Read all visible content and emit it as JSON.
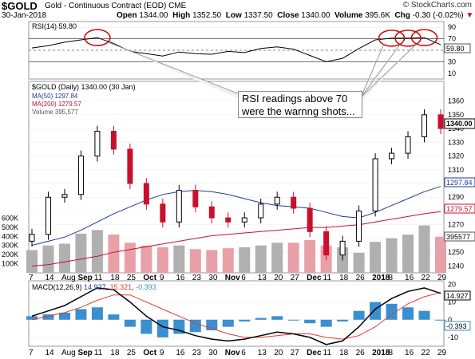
{
  "header": {
    "symbol": "$GOLD",
    "description": "Gold - Continuous Contract (EOD)",
    "exchange": "CME",
    "brand": "© StockCharts.com",
    "date": "30-Jan-2018",
    "open_label": "Open",
    "open": "1344.00",
    "high_label": "High",
    "high": "1352.50",
    "low_label": "Low",
    "low": "1337.50",
    "close_label": "Close",
    "close": "1340.00",
    "volume_label": "Volume",
    "volume": "395.6K",
    "chg_label": "Chg",
    "chg": "-0.30 (-0.02%)",
    "chg_arrow": "▼"
  },
  "annotation": "RSI readings above 70 were the warnng shots...",
  "colors": {
    "up": "#000000",
    "down": "#c8102e",
    "ma50": "#1f3a93",
    "ma200": "#c8102e",
    "volume": "#b0b0b0",
    "volume_down": "#e8a0a8",
    "macd": "#000000",
    "signal": "#e03c31",
    "hist": "#3a8fd0",
    "circle": "#d00000"
  },
  "chart_data": [
    {
      "type": "line",
      "panel": "RSI",
      "legend": "RSI(14) 59.80",
      "last_value": "59.80",
      "yticks": [
        10,
        30,
        50,
        70,
        90
      ],
      "overbought": 70,
      "oversold": 30,
      "x": [
        "Aug 7",
        "Aug 14",
        "Aug 21",
        "Aug 28",
        "Sep 4",
        "Sep 11",
        "Sep 18",
        "Sep 25",
        "Oct 2",
        "Oct 9",
        "Oct 16",
        "Oct 23",
        "Oct 30",
        "Nov 6",
        "Nov 13",
        "Nov 20",
        "Nov 27",
        "Dec 4",
        "Dec 11",
        "Dec 18",
        "Dec 26",
        "Jan 2",
        "Jan 8",
        "Jan 16",
        "Jan 22",
        "Jan 29"
      ],
      "values": [
        54,
        58,
        64,
        68,
        72,
        62,
        48,
        44,
        40,
        47,
        44,
        43,
        48,
        46,
        53,
        56,
        52,
        41,
        30,
        36,
        53,
        68,
        71,
        71,
        72,
        59.8
      ]
    },
    {
      "type": "candlestick",
      "panel": "Price",
      "legend": "$GOLD (Daily) 1340.00 (30 Jan)",
      "ma50_label": "MA(50) 1297.84",
      "ma200_label": "MA(200) 1279.57",
      "volume_label": "Volume 395,577",
      "price_label": "1340.00",
      "ma50_value_label": "1297.84",
      "ma200_value_label": "1279.57",
      "volume_value_label": "395577",
      "yticks": [
        1240,
        1250,
        1260,
        1270,
        1280,
        1290,
        1300,
        1310,
        1320,
        1330,
        1340,
        1350,
        1360
      ],
      "volume_ticks": [
        "100K",
        "200K",
        "300K",
        "400K",
        "500K",
        "600K"
      ],
      "ylim": [
        1235,
        1365
      ],
      "x": [
        "Aug 7",
        "Aug 14",
        "Aug 21",
        "Aug 28",
        "Sep 4",
        "Sep 11",
        "Sep 18",
        "Sep 25",
        "Oct 2",
        "Oct 9",
        "Oct 16",
        "Oct 23",
        "Oct 30",
        "Nov 6",
        "Nov 13",
        "Nov 20",
        "Nov 27",
        "Dec 4",
        "Dec 11",
        "Dec 18",
        "Dec 26",
        "Jan 2",
        "Jan 8",
        "Jan 16",
        "Jan 22",
        "Jan 29"
      ],
      "close": [
        1263,
        1290,
        1292,
        1320,
        1338,
        1325,
        1300,
        1285,
        1272,
        1295,
        1283,
        1275,
        1272,
        1275,
        1285,
        1290,
        1282,
        1265,
        1248,
        1258,
        1280,
        1318,
        1322,
        1334,
        1350,
        1340
      ],
      "ma50": [
        1255,
        1258,
        1261,
        1266,
        1272,
        1278,
        1283,
        1288,
        1292,
        1294,
        1295,
        1294,
        1292,
        1289,
        1286,
        1284,
        1283,
        1282,
        1279,
        1276,
        1275,
        1279,
        1284,
        1289,
        1294,
        1297.84
      ],
      "ma200": [
        1240,
        1241,
        1243,
        1245,
        1247,
        1250,
        1252,
        1254,
        1256,
        1258,
        1260,
        1262,
        1263,
        1264,
        1265,
        1266,
        1267,
        1268,
        1268,
        1269,
        1270,
        1272,
        1274,
        1276,
        1278,
        1279.57
      ],
      "volume_k": [
        250,
        300,
        320,
        430,
        470,
        420,
        330,
        300,
        280,
        300,
        260,
        250,
        270,
        280,
        300,
        330,
        330,
        360,
        300,
        280,
        220,
        340,
        380,
        420,
        520,
        396
      ]
    },
    {
      "type": "line",
      "panel": "MACD",
      "legend_name": "MACD(12,26,9)",
      "macd_val": "14.927",
      "signal_val": "15.321",
      "hist_val": "-0.393",
      "macd_label": "14.927",
      "hist_label": "-0.393",
      "yticks": [
        20,
        10,
        0,
        -10
      ],
      "x": [
        "Aug 7",
        "Aug 14",
        "Aug 21",
        "Aug 28",
        "Sep 4",
        "Sep 11",
        "Sep 18",
        "Sep 25",
        "Oct 2",
        "Oct 9",
        "Oct 16",
        "Oct 23",
        "Oct 30",
        "Nov 6",
        "Nov 13",
        "Nov 20",
        "Nov 27",
        "Dec 4",
        "Dec 11",
        "Dec 18",
        "Dec 26",
        "Jan 2",
        "Jan 8",
        "Jan 16",
        "Jan 22",
        "Jan 29"
      ],
      "macd": [
        2,
        5,
        8,
        13,
        18,
        17,
        10,
        2,
        -4,
        -6,
        -9,
        -11,
        -12,
        -11,
        -9,
        -7,
        -8,
        -10,
        -14,
        -12,
        -4,
        6,
        12,
        16,
        18,
        14.927
      ],
      "signal": [
        0,
        2,
        4,
        7,
        11,
        14,
        14,
        10,
        6,
        2,
        -2,
        -5,
        -8,
        -10,
        -10,
        -9,
        -8,
        -8,
        -10,
        -11,
        -9,
        -4,
        3,
        9,
        13,
        15.321
      ]
    }
  ],
  "x_labels": [
    "7",
    "14",
    "Aug",
    "Sep",
    "11",
    "18",
    "25",
    "Oct",
    "9",
    "16",
    "23",
    "30",
    "Nov",
    "6",
    "13",
    "20",
    "27",
    "Dec",
    "11",
    "18",
    "26",
    "2018",
    "8",
    "16",
    "22",
    "29"
  ]
}
